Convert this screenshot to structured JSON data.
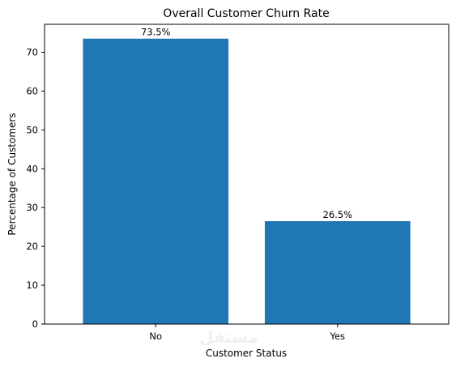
{
  "chart_data": {
    "type": "bar",
    "title": "Overall Customer Churn Rate",
    "xlabel": "Customer Status",
    "ylabel": "Percentage of Customers",
    "categories": [
      "No",
      "Yes"
    ],
    "values": [
      73.5,
      26.5
    ],
    "data_labels": [
      "73.5%",
      "26.5%"
    ],
    "ylim": [
      0,
      77.2
    ],
    "yticks": [
      0,
      10,
      20,
      30,
      40,
      50,
      60,
      70
    ],
    "bar_color": "#1f77b4",
    "grid": false,
    "legend": "none"
  },
  "watermark": {
    "text": "مستقل"
  }
}
